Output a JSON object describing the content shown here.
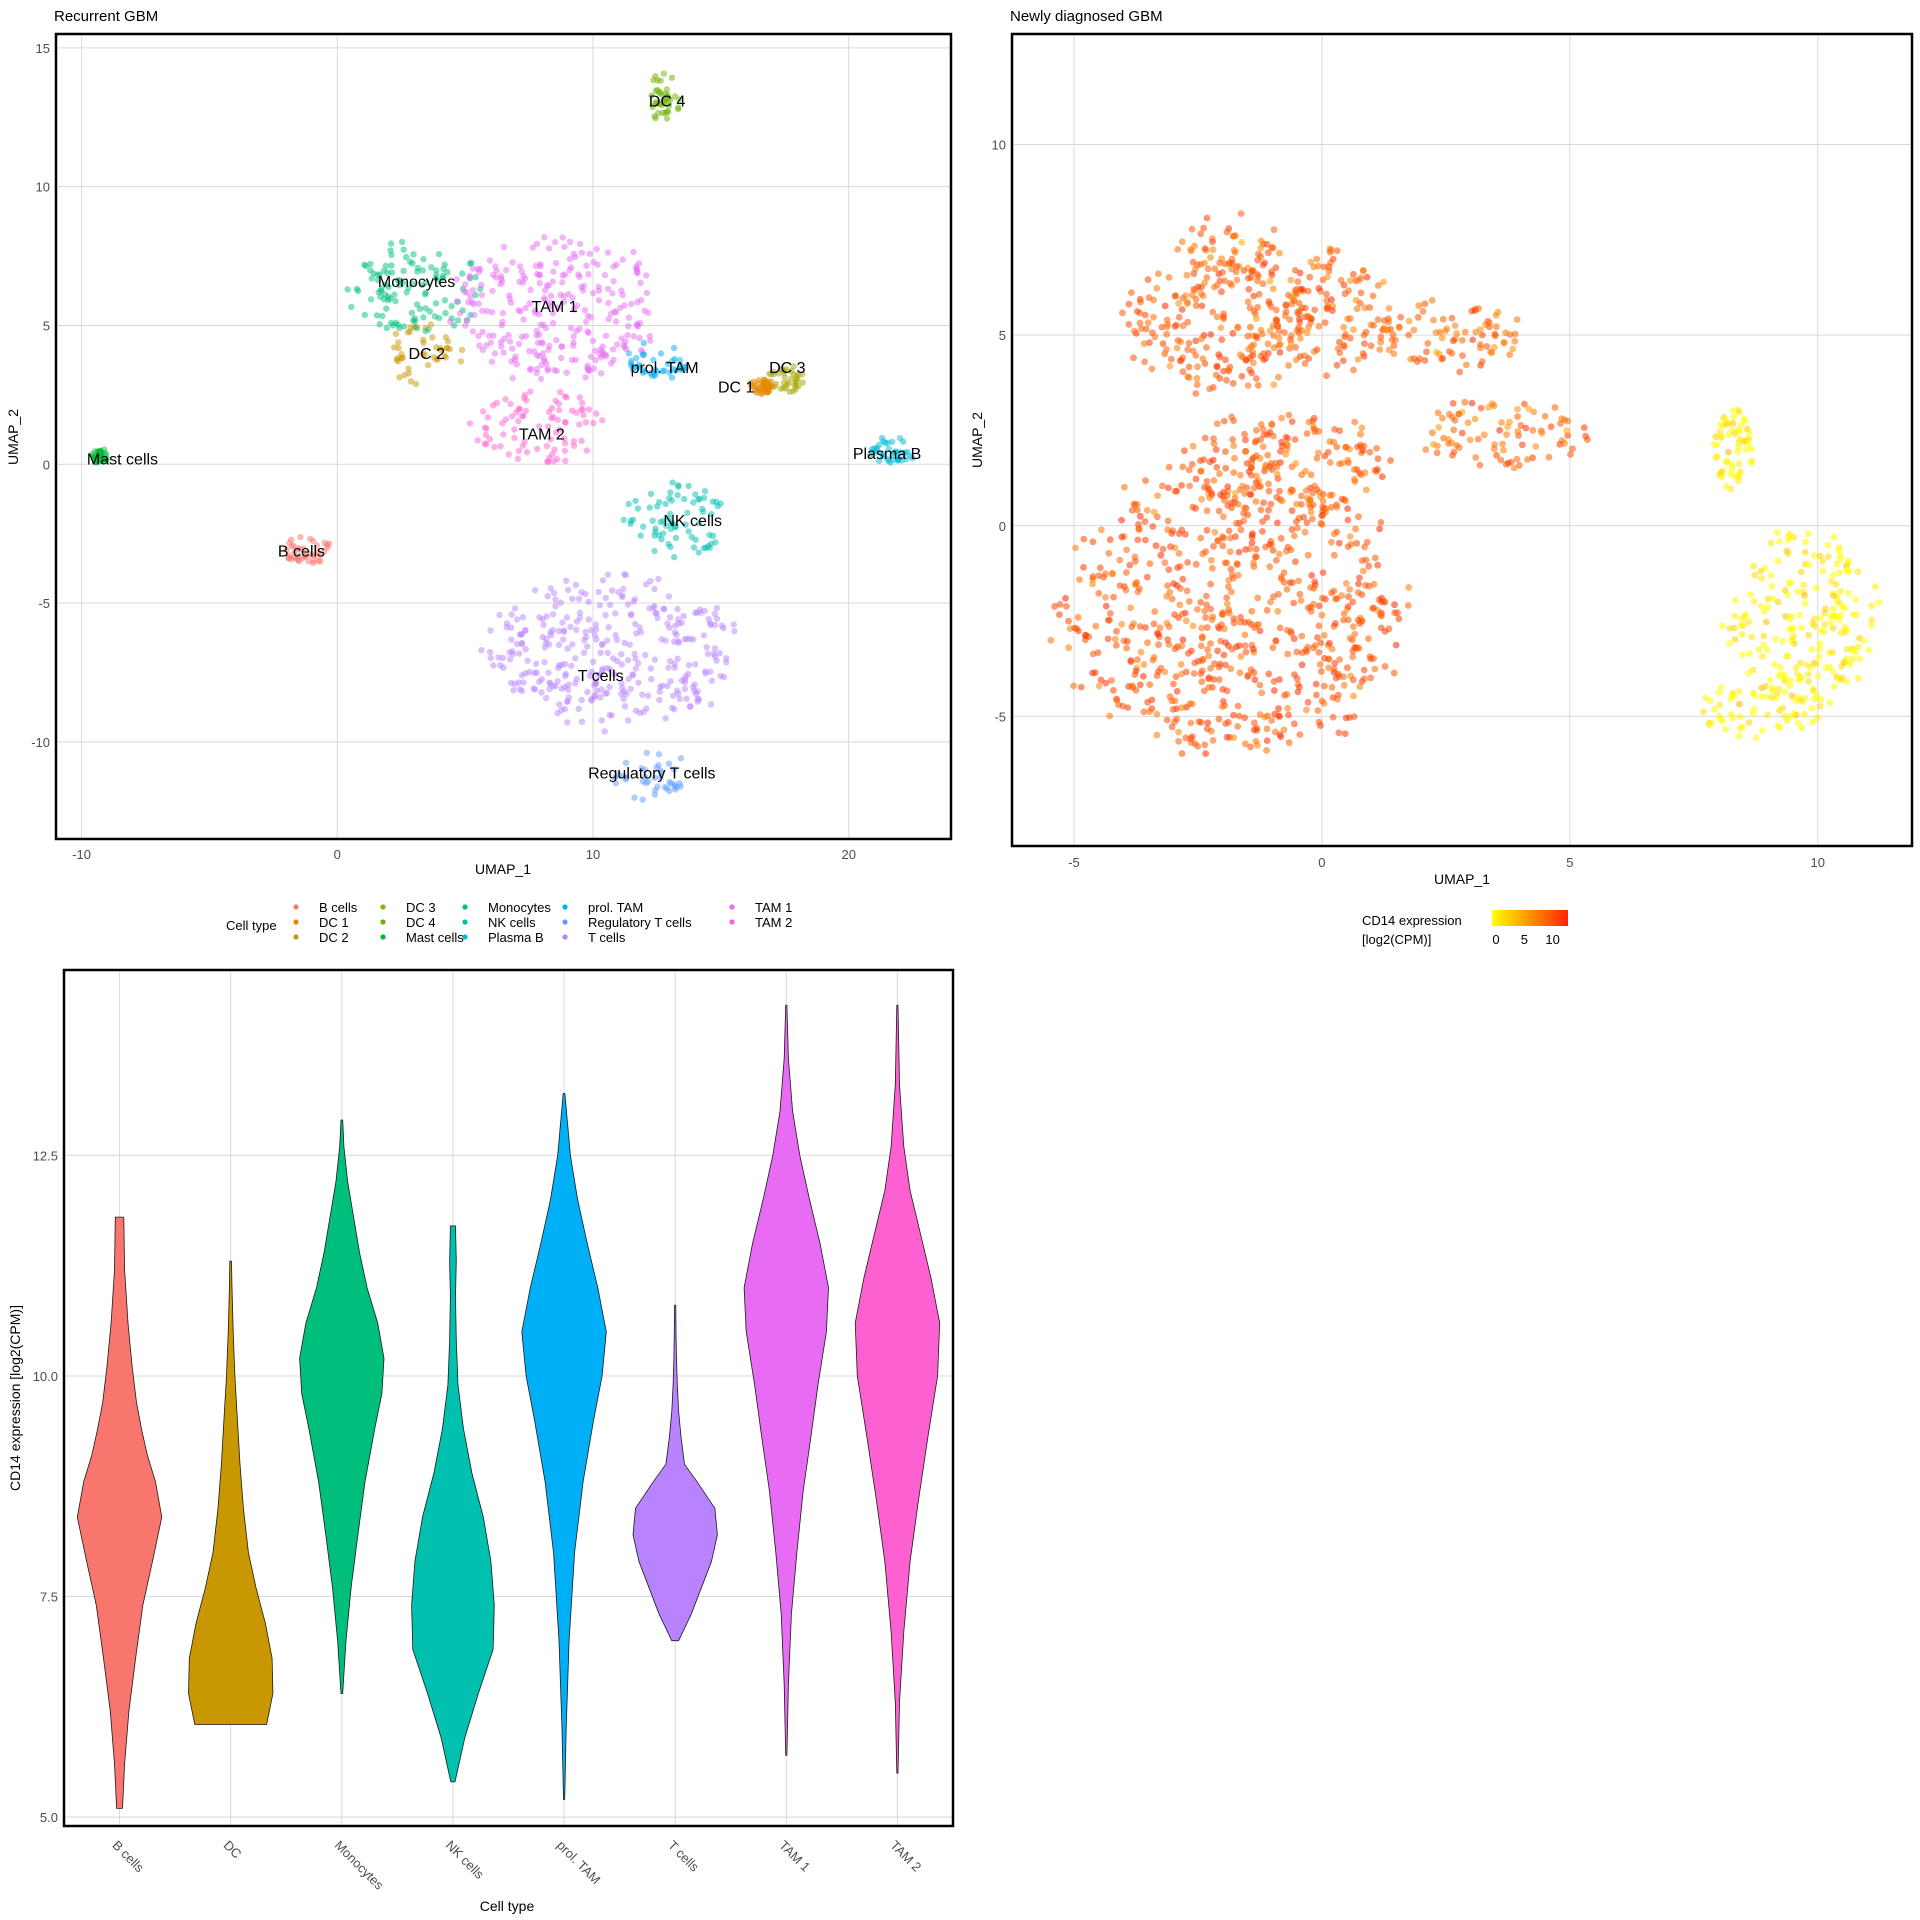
{
  "colors": {
    "B cells": "#F8766D",
    "DC 1": "#E58700",
    "DC 2": "#C99800",
    "DC 3": "#A3A500",
    "DC 4": "#6BB100",
    "Mast cells": "#00BA38",
    "Monocytes": "#00BF7D",
    "NK cells": "#00C0AF",
    "Plasma B": "#00BCD8",
    "prol. TAM": "#00B0F6",
    "Regulatory T cells": "#619CFF",
    "T cells": "#B983FF",
    "TAM 1": "#E76BF3",
    "TAM 2": "#FD61D1",
    "DC": "#C99800"
  },
  "chart_data": [
    {
      "type": "scatter",
      "title": "Recurrent GBM",
      "xlabel": "UMAP_1",
      "ylabel": "UMAP_2",
      "xlim": [
        -11,
        24
      ],
      "ylim": [
        -13.5,
        15.5
      ],
      "xticks": [
        -10,
        0,
        10,
        20
      ],
      "yticks": [
        -10,
        -5,
        0,
        5,
        10,
        15
      ],
      "grid": true,
      "clusters": [
        {
          "name": "Monocytes",
          "cx": 3.0,
          "cy": 6.3,
          "rx": 2.8,
          "ry": 1.7
        },
        {
          "name": "DC 2",
          "cx": 3.4,
          "cy": 4.0,
          "rx": 1.5,
          "ry": 1.2
        },
        {
          "name": "TAM 1",
          "cx": 8.6,
          "cy": 5.6,
          "rx": 4.2,
          "ry": 2.7
        },
        {
          "name": "TAM 2",
          "cx": 7.8,
          "cy": 1.4,
          "rx": 2.6,
          "ry": 1.4
        },
        {
          "name": "prol. TAM",
          "cx": 12.5,
          "cy": 3.7,
          "rx": 1.2,
          "ry": 0.9
        },
        {
          "name": "DC 3",
          "cx": 17.5,
          "cy": 3.1,
          "rx": 0.9,
          "ry": 0.5
        },
        {
          "name": "DC 1",
          "cx": 16.6,
          "cy": 2.8,
          "rx": 0.5,
          "ry": 0.3
        },
        {
          "name": "DC 4",
          "cx": 12.8,
          "cy": 13.2,
          "rx": 0.7,
          "ry": 0.9
        },
        {
          "name": "Plasma B",
          "cx": 21.7,
          "cy": 0.5,
          "rx": 1.0,
          "ry": 0.5
        },
        {
          "name": "Mast cells",
          "cx": -9.3,
          "cy": 0.3,
          "rx": 0.3,
          "ry": 0.3
        },
        {
          "name": "B cells",
          "cx": -1.2,
          "cy": -3.1,
          "rx": 1.0,
          "ry": 0.6
        },
        {
          "name": "NK cells",
          "cx": 13.2,
          "cy": -2.0,
          "rx": 2.2,
          "ry": 1.4
        },
        {
          "name": "T cells",
          "cx": 10.8,
          "cy": -6.8,
          "rx": 5.0,
          "ry": 2.8
        },
        {
          "name": "Regulatory T cells",
          "cx": 12.2,
          "cy": -11.2,
          "rx": 1.8,
          "ry": 0.9
        }
      ],
      "labels": [
        {
          "text": "Monocytes",
          "x": 3.1,
          "y": 6.6
        },
        {
          "text": "TAM 1",
          "x": 8.5,
          "y": 5.7
        },
        {
          "text": "DC 2",
          "x": 3.5,
          "y": 4.0
        },
        {
          "text": "prol. TAM",
          "x": 12.8,
          "y": 3.5
        },
        {
          "text": "DC 3",
          "x": 17.6,
          "y": 3.5
        },
        {
          "text": "DC 1",
          "x": 15.6,
          "y": 2.8
        },
        {
          "text": "DC 4",
          "x": 12.9,
          "y": 13.1
        },
        {
          "text": "TAM 2",
          "x": 8.0,
          "y": 1.1
        },
        {
          "text": "Plasma B",
          "x": 21.5,
          "y": 0.4
        },
        {
          "text": "Mast cells",
          "x": -8.4,
          "y": 0.2
        },
        {
          "text": "B cells",
          "x": -1.4,
          "y": -3.1
        },
        {
          "text": "NK cells",
          "x": 13.9,
          "y": -2.0
        },
        {
          "text": "T cells",
          "x": 10.3,
          "y": -7.6
        },
        {
          "text": "Regulatory T cells",
          "x": 12.3,
          "y": -11.1
        }
      ],
      "legend": {
        "title": "Cell type",
        "position": "bottom",
        "items": [
          "B cells",
          "DC 1",
          "DC 2",
          "DC 3",
          "DC 4",
          "Mast cells",
          "Monocytes",
          "NK cells",
          "Plasma B",
          "prol. TAM",
          "Regulatory T cells",
          "T cells",
          "TAM 1",
          "TAM 2"
        ]
      }
    },
    {
      "type": "scatter",
      "title": "Newly diagnosed GBM",
      "xlabel": "UMAP_1",
      "ylabel": "UMAP_2",
      "xlim": [
        -6.25,
        11.9
      ],
      "ylim": [
        -8.4,
        12.9
      ],
      "xticks": [
        -5,
        0,
        5,
        10
      ],
      "yticks": [
        -5,
        0,
        5,
        10
      ],
      "grid": true,
      "clusters": [
        {
          "cx": -2.1,
          "cy": 5.2,
          "rx": 2.2,
          "ry": 1.8,
          "value": 9.0
        },
        {
          "cx": -1.9,
          "cy": 7.2,
          "rx": 1.1,
          "ry": 1.0,
          "value": 8.5
        },
        {
          "cx": 0.2,
          "cy": 5.6,
          "rx": 1.3,
          "ry": 1.7,
          "value": 9.0
        },
        {
          "cx": 2.6,
          "cy": 5.0,
          "rx": 1.5,
          "ry": 1.0,
          "value": 8.5
        },
        {
          "cx": -1.8,
          "cy": -2.2,
          "rx": 3.6,
          "ry": 4.0,
          "value": 9.5
        },
        {
          "cx": -0.8,
          "cy": 1.6,
          "rx": 2.2,
          "ry": 1.4,
          "value": 9.0
        },
        {
          "cx": 3.6,
          "cy": 2.4,
          "rx": 1.8,
          "ry": 0.9,
          "value": 8.5
        },
        {
          "cx": 9.7,
          "cy": -2.4,
          "rx": 1.6,
          "ry": 2.4,
          "value": 0.5
        },
        {
          "cx": 8.8,
          "cy": -4.8,
          "rx": 1.4,
          "ry": 0.8,
          "value": 0.5
        },
        {
          "cx": 8.3,
          "cy": 2.0,
          "rx": 0.4,
          "ry": 1.2,
          "value": 0.5
        }
      ],
      "legend": {
        "title_line1": "CD14 expression",
        "title_line2": "[log2(CPM)]",
        "ticks": [
          0,
          5,
          10
        ],
        "range": [
          0,
          12
        ],
        "colors": [
          "#FFFF00",
          "#FF2400"
        ]
      }
    },
    {
      "type": "violin",
      "xlabel": "Cell type",
      "ylabel": "CD14 expression [log2(CPM)]",
      "ylim": [
        4.9,
        14.6
      ],
      "yticks": [
        5.0,
        7.5,
        10.0,
        12.5
      ],
      "ytick_labels": [
        "5.0",
        "7.5",
        "10.0",
        "12.5"
      ],
      "grid": true,
      "categories": [
        "B cells",
        "DC",
        "Monocytes",
        "NK cells",
        "prol. TAM",
        "T cells",
        "TAM 1",
        "TAM 2"
      ],
      "series": [
        {
          "y": [
            5.1,
            5.6,
            6.2,
            6.8,
            7.4,
            7.9,
            8.4,
            8.8,
            9.1,
            9.4,
            9.7,
            10.1,
            10.6,
            11.2,
            11.8
          ],
          "w": [
            0.07,
            0.12,
            0.22,
            0.38,
            0.55,
            0.78,
            1.0,
            0.85,
            0.66,
            0.52,
            0.4,
            0.3,
            0.2,
            0.12,
            0.1
          ]
        },
        {
          "y": [
            6.05,
            6.4,
            6.8,
            7.2,
            7.6,
            8.0,
            8.5,
            9.0,
            9.5,
            10.0,
            10.5,
            11.0,
            11.3
          ],
          "w": [
            0.85,
            1.0,
            0.98,
            0.82,
            0.6,
            0.42,
            0.3,
            0.22,
            0.16,
            0.1,
            0.06,
            0.03,
            0.02
          ]
        },
        {
          "y": [
            6.4,
            7.0,
            7.6,
            8.2,
            8.8,
            9.4,
            9.8,
            10.2,
            10.6,
            11.0,
            11.4,
            11.8,
            12.2,
            12.6,
            12.9
          ],
          "w": [
            0.02,
            0.1,
            0.22,
            0.38,
            0.55,
            0.78,
            0.95,
            1.0,
            0.85,
            0.6,
            0.42,
            0.28,
            0.14,
            0.05,
            0.02
          ]
        },
        {
          "y": [
            5.4,
            5.9,
            6.4,
            6.9,
            7.4,
            7.9,
            8.4,
            8.9,
            9.4,
            9.9,
            10.4,
            10.9,
            11.3,
            11.7
          ],
          "w": [
            0.05,
            0.28,
            0.6,
            0.95,
            0.98,
            0.9,
            0.72,
            0.45,
            0.25,
            0.12,
            0.08,
            0.06,
            0.08,
            0.06
          ]
        },
        {
          "y": [
            5.2,
            6.0,
            7.0,
            8.0,
            8.8,
            9.5,
            10.0,
            10.5,
            11.0,
            11.5,
            12.0,
            12.5,
            13.2
          ],
          "w": [
            0.01,
            0.05,
            0.12,
            0.25,
            0.45,
            0.7,
            0.9,
            1.0,
            0.8,
            0.55,
            0.32,
            0.15,
            0.02
          ]
        },
        {
          "y": [
            7.0,
            7.3,
            7.6,
            7.9,
            8.2,
            8.5,
            8.8,
            9.0,
            9.3,
            9.6,
            9.9,
            10.2,
            10.5,
            10.8
          ],
          "w": [
            0.08,
            0.38,
            0.62,
            0.86,
            1.0,
            0.94,
            0.52,
            0.22,
            0.14,
            0.08,
            0.05,
            0.03,
            0.02,
            0.01
          ]
        },
        {
          "y": [
            5.7,
            6.5,
            7.3,
            8.0,
            8.7,
            9.3,
            9.9,
            10.5,
            11.0,
            11.5,
            12.0,
            12.5,
            13.0,
            13.6,
            14.2
          ],
          "w": [
            0.01,
            0.05,
            0.12,
            0.25,
            0.4,
            0.58,
            0.75,
            0.95,
            1.0,
            0.8,
            0.55,
            0.32,
            0.15,
            0.05,
            0.01
          ]
        },
        {
          "y": [
            5.5,
            6.3,
            7.1,
            7.9,
            8.6,
            9.3,
            10.0,
            10.6,
            11.1,
            11.6,
            12.1,
            12.6,
            13.3,
            14.2
          ],
          "w": [
            0.01,
            0.05,
            0.15,
            0.3,
            0.5,
            0.72,
            0.95,
            1.0,
            0.8,
            0.55,
            0.3,
            0.15,
            0.05,
            0.01
          ]
        }
      ]
    }
  ]
}
